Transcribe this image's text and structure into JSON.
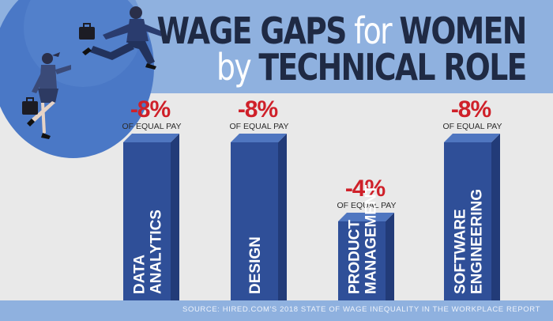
{
  "title": {
    "line1_bold": "WAGE GAPS",
    "line1_light": " for ",
    "line1_bold2": "WOMEN",
    "line2_light": "by ",
    "line2_bold": "TECHNICAL ROLE"
  },
  "source": "SOURCE: HIRED.COM'S 2018 STATE OF WAGE INEQUALITY IN THE WORKPLACE REPORT",
  "colors": {
    "bar_front": "#2f4f98",
    "bar_side": "#223b78",
    "bar_top": "#4f76c0",
    "value_red": "#cf2029",
    "label_dark": "#2b2b2b",
    "band": "#8fb1df"
  },
  "chart_data": {
    "type": "bar",
    "categories": [
      [
        "DATA",
        "ANALYTICS"
      ],
      [
        "DESIGN"
      ],
      [
        "PRODUCT",
        "MANAGEMENT"
      ],
      [
        "SOFTWARE",
        "ENGINEERING"
      ]
    ],
    "values": [
      -8,
      -8,
      -4,
      -8
    ],
    "value_labels": [
      "-8%",
      "-8%",
      "-4%",
      "-8%"
    ],
    "value_sublabel": "OF EQUAL PAY",
    "title": "WAGE GAPS for WOMEN by TECHNICAL ROLE",
    "xlabel": "",
    "ylabel": "",
    "ylim": [
      0,
      -8
    ]
  }
}
